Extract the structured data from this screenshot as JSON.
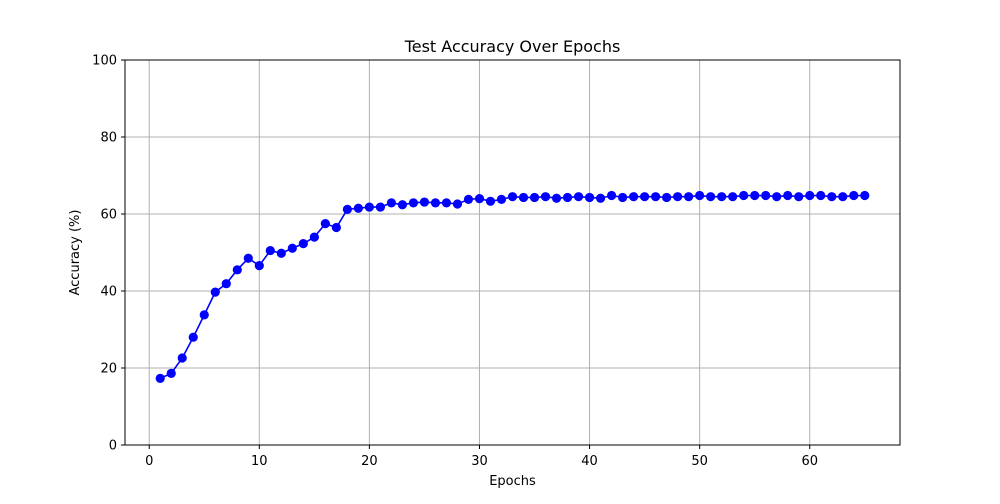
{
  "chart_data": {
    "type": "line",
    "title": "Test Accuracy Over Epochs",
    "xlabel": "Epochs",
    "ylabel": "Accuracy (%)",
    "xlim": [
      -2.2,
      68.2
    ],
    "ylim": [
      0,
      100
    ],
    "xticks": [
      0,
      10,
      20,
      30,
      40,
      50,
      60
    ],
    "yticks": [
      0,
      20,
      40,
      60,
      80,
      100
    ],
    "grid": true,
    "series": [
      {
        "color": "#0000ff",
        "marker": "circle",
        "x": [
          1,
          2,
          3,
          4,
          5,
          6,
          7,
          8,
          9,
          10,
          11,
          12,
          13,
          14,
          15,
          16,
          17,
          18,
          19,
          20,
          21,
          22,
          23,
          24,
          25,
          26,
          27,
          28,
          29,
          30,
          31,
          32,
          33,
          34,
          35,
          36,
          37,
          38,
          39,
          40,
          41,
          42,
          43,
          44,
          45,
          46,
          47,
          48,
          49,
          50,
          51,
          52,
          53,
          54,
          55,
          56,
          57,
          58,
          59,
          60,
          61,
          62,
          63,
          64,
          65
        ],
        "y": [
          17.3,
          18.6,
          22.6,
          28.0,
          33.8,
          39.7,
          41.9,
          45.5,
          48.5,
          46.6,
          50.5,
          49.8,
          51.1,
          52.3,
          54.0,
          57.5,
          56.5,
          61.2,
          61.5,
          61.8,
          61.8,
          62.9,
          62.4,
          62.9,
          63.1,
          62.9,
          62.9,
          62.6,
          63.8,
          64.0,
          63.3,
          63.8,
          64.5,
          64.3,
          64.3,
          64.5,
          64.1,
          64.3,
          64.5,
          64.3,
          64.1,
          64.8,
          64.3,
          64.5,
          64.5,
          64.5,
          64.3,
          64.5,
          64.5,
          64.8,
          64.5,
          64.5,
          64.5,
          64.8,
          64.8,
          64.8,
          64.5,
          64.8,
          64.5,
          64.8,
          64.8,
          64.5,
          64.5,
          64.8,
          64.8
        ]
      }
    ]
  }
}
